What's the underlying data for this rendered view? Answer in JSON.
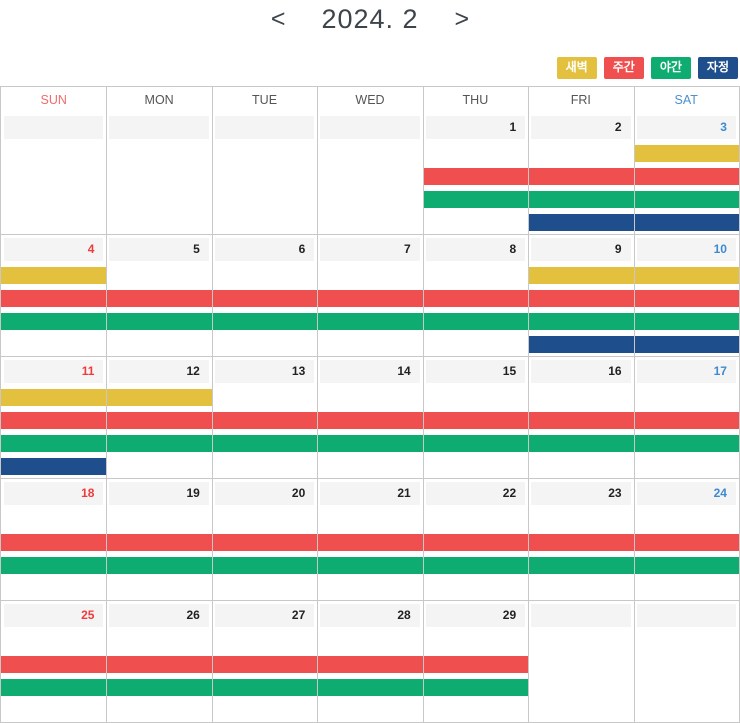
{
  "header": {
    "prev_label": "<",
    "title": "2024. 2",
    "next_label": ">"
  },
  "palette": {
    "dawn": "#e3c13f",
    "day": "#f04f4f",
    "night": "#0eac71",
    "midnight": "#1e4e8c"
  },
  "legend": [
    {
      "key": "dawn",
      "label": "새벽"
    },
    {
      "key": "day",
      "label": "주간"
    },
    {
      "key": "night",
      "label": "야간"
    },
    {
      "key": "midnight",
      "label": "자정"
    }
  ],
  "calendar": {
    "day_headers": [
      {
        "label": "SUN",
        "color": "#f26c6c"
      },
      {
        "label": "MON",
        "color": "#555555"
      },
      {
        "label": "TUE",
        "color": "#555555"
      },
      {
        "label": "WED",
        "color": "#555555"
      },
      {
        "label": "THU",
        "color": "#555555"
      },
      {
        "label": "FRI",
        "color": "#555555"
      },
      {
        "label": "SAT",
        "color": "#4a90d2"
      }
    ],
    "date_colors": {
      "sunday": "#ee3b3b",
      "saturday": "#3d8ad0",
      "default": "#222222"
    },
    "grid_border_color": "#c8c8c8",
    "date_cell_background": "#f4f4f4",
    "weeks": [
      {
        "dates": [
          "",
          "",
          "",
          "",
          "1",
          "2",
          "3"
        ],
        "bars": [
          {
            "type": "dawn",
            "start": 7,
            "end": 7
          },
          {
            "type": "day",
            "start": 5,
            "end": 7
          },
          {
            "type": "night",
            "start": 5,
            "end": 7
          },
          {
            "type": "midnight",
            "start": 6,
            "end": 7
          }
        ]
      },
      {
        "dates": [
          "4",
          "5",
          "6",
          "7",
          "8",
          "9",
          "10"
        ],
        "bars": [
          {
            "type": "dawn",
            "start": 1,
            "end": 1
          },
          {
            "type": "dawn",
            "start": 6,
            "end": 7
          },
          {
            "type": "day",
            "start": 1,
            "end": 7
          },
          {
            "type": "night",
            "start": 1,
            "end": 7
          },
          {
            "type": "midnight",
            "start": 6,
            "end": 7
          }
        ]
      },
      {
        "dates": [
          "11",
          "12",
          "13",
          "14",
          "15",
          "16",
          "17"
        ],
        "bars": [
          {
            "type": "dawn",
            "start": 1,
            "end": 2
          },
          {
            "type": "day",
            "start": 1,
            "end": 7
          },
          {
            "type": "night",
            "start": 1,
            "end": 7
          },
          {
            "type": "midnight",
            "start": 1,
            "end": 1
          }
        ]
      },
      {
        "dates": [
          "18",
          "19",
          "20",
          "21",
          "22",
          "23",
          "24"
        ],
        "bars": [
          {
            "type": "day",
            "start": 1,
            "end": 7
          },
          {
            "type": "night",
            "start": 1,
            "end": 7
          }
        ]
      },
      {
        "dates": [
          "25",
          "26",
          "27",
          "28",
          "29",
          "",
          ""
        ],
        "bars": [
          {
            "type": "day",
            "start": 1,
            "end": 5
          },
          {
            "type": "night",
            "start": 1,
            "end": 5
          }
        ]
      }
    ]
  }
}
